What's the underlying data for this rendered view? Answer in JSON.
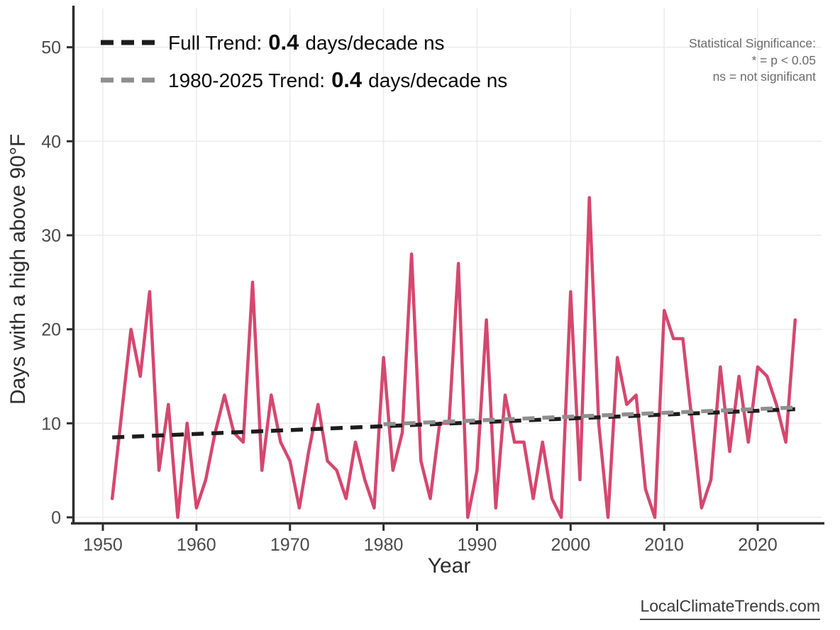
{
  "legend": [
    {
      "prefix": "Full Trend:",
      "value": "0.4",
      "suffix": "days/decade ns",
      "color": "#1c1c1c"
    },
    {
      "prefix": "1980-2025 Trend:",
      "value": "0.4",
      "suffix": "days/decade ns",
      "color": "#8f8f8f"
    }
  ],
  "significance_note": {
    "line1": "Statistical Significance:",
    "line2": "* = p < 0.05",
    "line3": "ns = not significant"
  },
  "watermark": "LocalClimateTrends.com",
  "colors": {
    "series": "#d5476f",
    "full_trend": "#1c1c1c",
    "recent_trend": "#8f8f8f",
    "gridline": "#ececec",
    "spine": "#2f2f2f",
    "tick_label": "#4a4a4a"
  },
  "chart_data": {
    "type": "line",
    "title": "",
    "xlabel": "Year",
    "ylabel": "Days with a high above 90°F",
    "xlim": [
      1947,
      2027
    ],
    "ylim": [
      0,
      53
    ],
    "grid": true,
    "legend_position": "top-left",
    "x_ticks": [
      1950,
      1960,
      1970,
      1980,
      1990,
      2000,
      2010,
      2020
    ],
    "y_ticks": [
      0,
      10,
      20,
      30,
      40,
      50
    ],
    "series": [
      {
        "name": "Days with a high above 90°F",
        "x": [
          1951,
          1952,
          1953,
          1954,
          1955,
          1956,
          1957,
          1958,
          1959,
          1960,
          1961,
          1962,
          1963,
          1964,
          1965,
          1966,
          1967,
          1968,
          1969,
          1970,
          1971,
          1972,
          1973,
          1974,
          1975,
          1976,
          1977,
          1978,
          1979,
          1980,
          1981,
          1982,
          1983,
          1984,
          1985,
          1986,
          1987,
          1988,
          1989,
          1990,
          1991,
          1992,
          1993,
          1994,
          1995,
          1996,
          1997,
          1998,
          1999,
          2000,
          2001,
          2002,
          2003,
          2004,
          2005,
          2006,
          2007,
          2008,
          2009,
          2010,
          2011,
          2012,
          2013,
          2014,
          2015,
          2016,
          2017,
          2018,
          2019,
          2020,
          2021,
          2022,
          2023,
          2024
        ],
        "values": [
          2,
          11,
          20,
          15,
          24,
          5,
          12,
          0,
          10,
          1,
          4,
          9,
          13,
          9,
          8,
          25,
          5,
          13,
          8,
          6,
          1,
          7,
          12,
          6,
          5,
          2,
          8,
          4,
          1,
          17,
          5,
          9,
          28,
          6,
          2,
          10,
          10,
          27,
          0,
          5,
          21,
          1,
          13,
          8,
          8,
          2,
          8,
          2,
          0,
          24,
          4,
          34,
          10,
          0,
          17,
          12,
          13,
          3,
          0,
          22,
          19,
          19,
          10,
          1,
          4,
          16,
          7,
          15,
          8,
          16,
          15,
          12,
          8,
          21
        ]
      }
    ],
    "trend_lines": [
      {
        "name": "Full Trend",
        "rate_per_decade": 0.4,
        "significance": "ns",
        "x_start": 1951,
        "y_start": 8.5,
        "x_end": 2024,
        "y_end": 11.5,
        "style": "dashed"
      },
      {
        "name": "1980-2025 Trend",
        "rate_per_decade": 0.4,
        "significance": "ns",
        "x_start": 1980,
        "y_start": 9.9,
        "x_end": 2024.5,
        "y_end": 11.7,
        "style": "dashed"
      }
    ]
  }
}
